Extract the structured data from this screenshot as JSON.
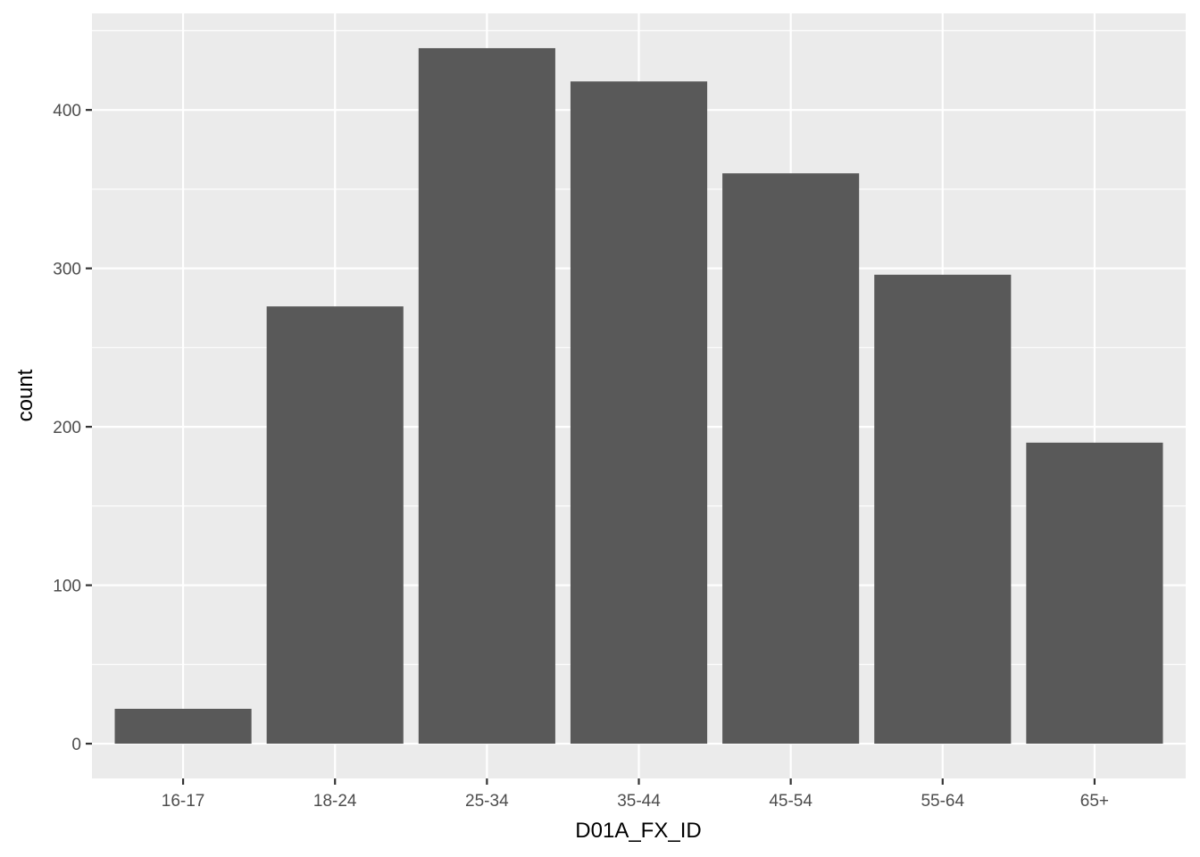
{
  "chart_data": {
    "type": "bar",
    "categories": [
      "16-17",
      "18-24",
      "25-34",
      "35-44",
      "45-54",
      "55-64",
      "65+"
    ],
    "values": [
      22,
      276,
      439,
      418,
      360,
      296,
      190
    ],
    "xlabel": "D01A_FX_ID",
    "ylabel": "count",
    "ylim": [
      -21.95,
      460.95
    ],
    "yticks": [
      0,
      100,
      200,
      300,
      400
    ],
    "yminor": [
      50,
      150,
      250,
      350,
      450
    ],
    "grid": true,
    "colors": {
      "bar": "#595959",
      "panel": "#EBEBEB",
      "grid": "#FFFFFF"
    }
  }
}
